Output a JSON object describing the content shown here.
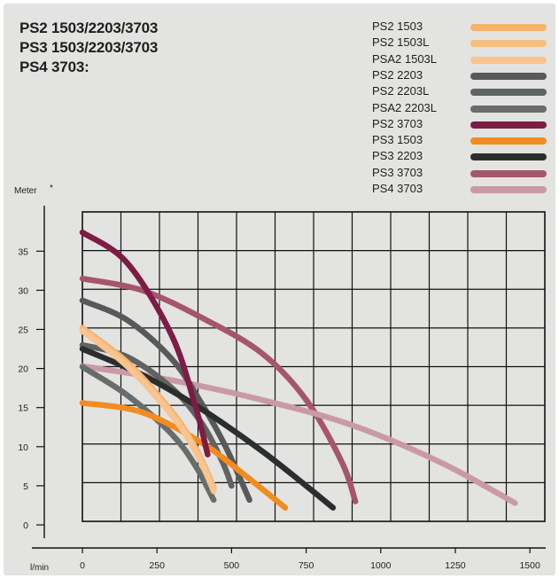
{
  "title": {
    "lines": [
      "PS2 1503/2203/3703",
      "PS3 1503/2203/3703",
      "PS4 3703:"
    ]
  },
  "chart_data": {
    "type": "line",
    "ylabel": "Meter",
    "ylabel_mark": "*",
    "xlabel": "l/min",
    "xlim": [
      0,
      1550
    ],
    "ylim": [
      0,
      40
    ],
    "x_ticks": [
      "0",
      "250",
      "500",
      "750",
      "1000",
      "1250",
      "1500"
    ],
    "x_tick_values": [
      0,
      250,
      500,
      750,
      1000,
      1250,
      1500
    ],
    "y_ticks": [
      "0",
      "5",
      "10",
      "15",
      "20",
      "25",
      "30",
      "35"
    ],
    "y_tick_values": [
      0,
      5,
      10,
      15,
      20,
      25,
      30,
      35
    ],
    "grid": true,
    "legend_position": "top-right",
    "series": [
      {
        "name": "PS2 1503",
        "color": "#f7b26d",
        "x": [
          0,
          150,
          300,
          370,
          410,
          440
        ],
        "y": [
          25.2,
          20.8,
          14.5,
          10.5,
          7.5,
          4.8
        ]
      },
      {
        "name": "PS2 1503L",
        "color": "#f7bd7f",
        "x": [
          0,
          150,
          300,
          370,
          410,
          440
        ],
        "y": [
          25,
          20.5,
          14.2,
          10.2,
          7.2,
          4.5
        ]
      },
      {
        "name": "PSA2 1503L",
        "color": "#f8c48f",
        "x": [
          0,
          150,
          300,
          370,
          410,
          440
        ],
        "y": [
          24.8,
          20.3,
          14,
          10,
          7,
          4.3
        ]
      },
      {
        "name": "PS2 2203",
        "color": "#565a58",
        "x": [
          0,
          150,
          300,
          400,
          480,
          560
        ],
        "y": [
          28.7,
          26.2,
          21.2,
          15.5,
          10,
          3.2
        ]
      },
      {
        "name": "PS2 2203L",
        "color": "#5f6361",
        "x": [
          0,
          150,
          300,
          400,
          470,
          500
        ],
        "y": [
          23,
          21.5,
          17.5,
          13,
          8,
          5
        ]
      },
      {
        "name": "PSA2 2203L",
        "color": "#686c6a",
        "x": [
          0,
          150,
          300,
          380,
          440
        ],
        "y": [
          20.2,
          16.6,
          11.6,
          7.5,
          3.2
        ]
      },
      {
        "name": "PS2 3703",
        "color": "#7d1c44",
        "x": [
          0,
          150,
          300,
          380,
          420
        ],
        "y": [
          37.4,
          33.5,
          24.2,
          15,
          9
        ]
      },
      {
        "name": "PS3 1503",
        "color": "#f28c20",
        "x": [
          0,
          200,
          400,
          550,
          680
        ],
        "y": [
          15.6,
          14.4,
          10.5,
          6.2,
          2.2
        ]
      },
      {
        "name": "PS3 2203",
        "color": "#2a2e2d",
        "x": [
          0,
          200,
          400,
          600,
          750,
          840
        ],
        "y": [
          22.5,
          19.2,
          14.8,
          9.5,
          5,
          2.2
        ]
      },
      {
        "name": "PS3 3703",
        "color": "#a5566c",
        "x": [
          0,
          200,
          400,
          600,
          750,
          870,
          915
        ],
        "y": [
          31.5,
          30,
          26.5,
          22,
          16,
          8,
          3
        ]
      },
      {
        "name": "PS4 3703",
        "color": "#c99aa6",
        "x": [
          0,
          300,
          600,
          900,
          1200,
          1450
        ],
        "y": [
          20.3,
          18.5,
          16,
          12.8,
          8,
          2.8
        ]
      }
    ]
  }
}
